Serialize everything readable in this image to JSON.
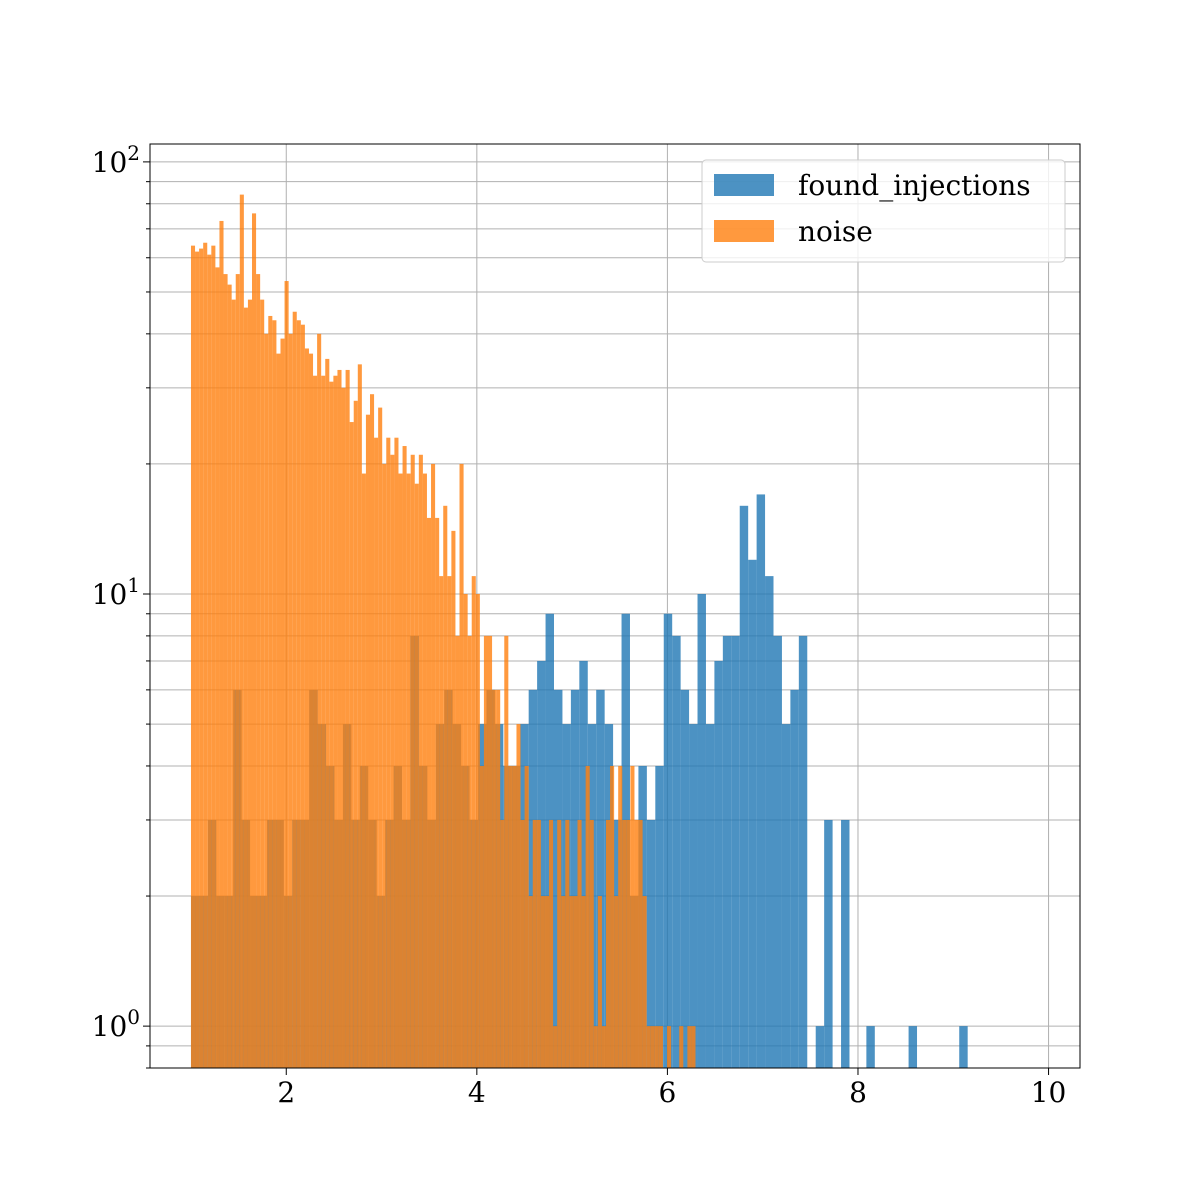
{
  "chart_data": {
    "type": "bar",
    "subtype": "histogram",
    "title": "",
    "xlabel": "",
    "ylabel": "",
    "xlim": [
      0.57,
      10.33
    ],
    "ylim": [
      0.8,
      110
    ],
    "yscale": "log",
    "grid": true,
    "legend_position": "top-right",
    "xticks": [
      2,
      4,
      6,
      8,
      10
    ],
    "xtick_labels": [
      "2",
      "4",
      "6",
      "8",
      "10"
    ],
    "yticks": [
      1,
      10,
      100
    ],
    "ytick_labels": [
      {
        "base": "10",
        "exp": "0"
      },
      {
        "base": "10",
        "exp": "1"
      },
      {
        "base": "10",
        "exp": "2"
      }
    ],
    "series": [
      {
        "name": "found_injections",
        "color": "#1f77b4",
        "opacity": 0.8,
        "x_start": 1.0,
        "bin_width": 0.0886,
        "values": [
          2,
          2,
          3,
          2,
          2,
          6,
          3,
          2,
          2,
          3,
          3,
          2,
          3,
          3,
          6,
          5,
          4,
          3,
          5,
          3,
          4,
          3,
          2,
          3,
          4,
          3,
          8,
          4,
          3,
          5,
          6,
          5,
          4,
          3,
          5,
          6,
          5,
          4,
          4,
          5,
          6,
          7,
          9,
          6,
          5,
          6,
          7,
          5,
          6,
          5,
          3,
          9,
          2,
          4,
          3,
          4,
          9,
          8,
          6,
          5,
          10,
          5,
          7,
          8,
          8,
          16,
          12,
          17,
          11,
          8,
          5,
          6,
          8,
          0,
          1,
          3,
          0,
          3,
          0,
          0,
          1,
          0,
          0,
          0,
          0,
          1,
          0,
          0,
          0,
          0,
          0,
          1,
          0,
          0,
          0,
          0,
          0
        ]
      },
      {
        "name": "noise",
        "color": "#ff7f0e",
        "opacity": 0.8,
        "x_start": 1.0,
        "bin_width": 0.0427,
        "values": [
          64,
          62,
          63,
          65,
          61,
          64,
          57,
          73,
          55,
          52,
          48,
          55,
          84,
          46,
          48,
          76,
          55,
          48,
          40,
          44,
          43,
          36,
          39,
          53,
          40,
          45,
          43,
          42,
          37,
          36,
          32,
          40,
          32,
          35,
          31,
          32,
          33,
          30,
          33,
          25,
          28,
          34,
          19,
          26,
          29,
          23,
          27,
          20,
          23,
          21,
          23,
          19,
          22,
          19,
          21,
          18,
          21,
          19,
          15,
          20,
          15,
          11,
          16,
          11,
          14,
          8,
          20,
          10,
          8,
          11,
          10,
          4,
          8,
          8,
          6,
          6,
          3,
          8,
          4,
          4,
          5,
          3,
          4,
          2,
          3,
          3,
          2,
          2,
          3,
          1,
          3,
          2,
          3,
          2,
          2,
          3,
          2,
          4,
          3,
          1,
          2,
          1,
          3,
          4,
          2,
          4,
          3,
          3,
          4,
          3,
          3,
          2,
          1,
          1,
          1,
          1,
          0,
          1,
          0,
          0,
          1,
          0,
          1,
          1,
          0,
          0,
          0,
          0
        ]
      }
    ]
  }
}
